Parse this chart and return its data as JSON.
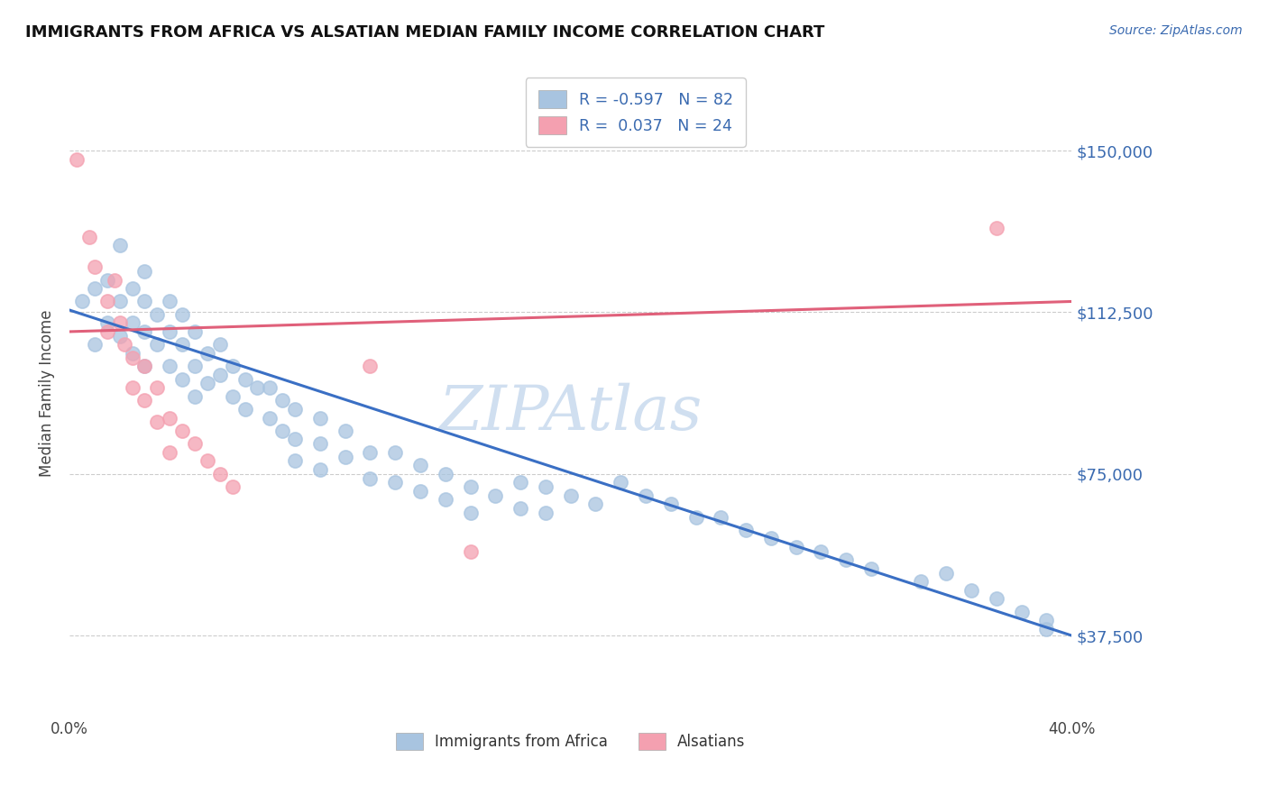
{
  "title": "IMMIGRANTS FROM AFRICA VS ALSATIAN MEDIAN FAMILY INCOME CORRELATION CHART",
  "source": "Source: ZipAtlas.com",
  "ylabel": "Median Family Income",
  "xlim": [
    0.0,
    0.4
  ],
  "ylim": [
    18750,
    168750
  ],
  "yticks": [
    37500,
    75000,
    112500,
    150000
  ],
  "ytick_labels": [
    "$37,500",
    "$75,000",
    "$112,500",
    "$150,000"
  ],
  "legend_R1": "-0.597",
  "legend_N1": "82",
  "legend_R2": "0.037",
  "legend_N2": "24",
  "series1_color": "#a8c4e0",
  "series2_color": "#f4a0b0",
  "line1_color": "#3a6fc4",
  "line2_color": "#e0607a",
  "watermark": "ZIPAtlas",
  "watermark_color": "#d0dff0",
  "label1": "Immigrants from Africa",
  "label2": "Alsatians",
  "blue_line_x0": 0.0,
  "blue_line_x1": 0.4,
  "blue_line_y0": 113000,
  "blue_line_y1": 37500,
  "pink_line_x0": 0.0,
  "pink_line_x1": 0.4,
  "pink_line_y0": 108000,
  "pink_line_y1": 115000,
  "blue_scatter_x": [
    0.005,
    0.01,
    0.01,
    0.015,
    0.015,
    0.02,
    0.02,
    0.02,
    0.025,
    0.025,
    0.025,
    0.03,
    0.03,
    0.03,
    0.03,
    0.035,
    0.035,
    0.04,
    0.04,
    0.04,
    0.045,
    0.045,
    0.045,
    0.05,
    0.05,
    0.05,
    0.055,
    0.055,
    0.06,
    0.06,
    0.065,
    0.065,
    0.07,
    0.07,
    0.075,
    0.08,
    0.08,
    0.085,
    0.085,
    0.09,
    0.09,
    0.09,
    0.1,
    0.1,
    0.1,
    0.11,
    0.11,
    0.12,
    0.12,
    0.13,
    0.13,
    0.14,
    0.14,
    0.15,
    0.15,
    0.16,
    0.16,
    0.17,
    0.18,
    0.18,
    0.19,
    0.19,
    0.2,
    0.21,
    0.22,
    0.23,
    0.24,
    0.25,
    0.26,
    0.27,
    0.28,
    0.29,
    0.3,
    0.31,
    0.32,
    0.34,
    0.35,
    0.36,
    0.37,
    0.38,
    0.39,
    0.39
  ],
  "blue_scatter_y": [
    115000,
    118000,
    105000,
    120000,
    110000,
    128000,
    115000,
    107000,
    118000,
    110000,
    103000,
    122000,
    115000,
    108000,
    100000,
    112000,
    105000,
    115000,
    108000,
    100000,
    112000,
    105000,
    97000,
    108000,
    100000,
    93000,
    103000,
    96000,
    105000,
    98000,
    100000,
    93000,
    97000,
    90000,
    95000,
    95000,
    88000,
    92000,
    85000,
    90000,
    83000,
    78000,
    88000,
    82000,
    76000,
    85000,
    79000,
    80000,
    74000,
    80000,
    73000,
    77000,
    71000,
    75000,
    69000,
    72000,
    66000,
    70000,
    73000,
    67000,
    72000,
    66000,
    70000,
    68000,
    73000,
    70000,
    68000,
    65000,
    65000,
    62000,
    60000,
    58000,
    57000,
    55000,
    53000,
    50000,
    52000,
    48000,
    46000,
    43000,
    41000,
    39000
  ],
  "pink_scatter_x": [
    0.003,
    0.008,
    0.01,
    0.015,
    0.015,
    0.018,
    0.02,
    0.022,
    0.025,
    0.025,
    0.03,
    0.03,
    0.035,
    0.035,
    0.04,
    0.04,
    0.045,
    0.05,
    0.055,
    0.06,
    0.065,
    0.12,
    0.16,
    0.37
  ],
  "pink_scatter_y": [
    148000,
    130000,
    123000,
    115000,
    108000,
    120000,
    110000,
    105000,
    102000,
    95000,
    100000,
    92000,
    95000,
    87000,
    88000,
    80000,
    85000,
    82000,
    78000,
    75000,
    72000,
    100000,
    57000,
    132000
  ]
}
